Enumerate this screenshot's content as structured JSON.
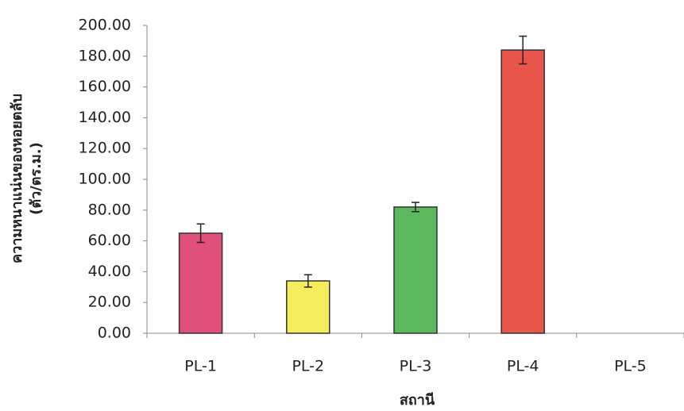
{
  "chart_data": {
    "type": "bar",
    "y_label": [
      "ความหนาแน่นของหอยตลับ",
      "(ตัว/ตร.ม.)"
    ],
    "x_label": "สถานี",
    "categories": [
      "PL-1",
      "PL-2",
      "PL-3",
      "PL-4",
      "PL-5"
    ],
    "values": [
      65,
      34,
      82,
      184,
      0
    ],
    "errors": [
      6,
      4,
      3,
      9,
      0
    ],
    "colors": [
      "#e0507a",
      "#f4ee5c",
      "#5cb85c",
      "#e8554a",
      "#999999"
    ],
    "ylim": [
      0,
      200
    ],
    "yticks": [
      {
        "value": 0,
        "label": "0.00"
      },
      {
        "value": 20,
        "label": "20.00"
      },
      {
        "value": 40,
        "label": "40.00"
      },
      {
        "value": 60,
        "label": "60.00"
      },
      {
        "value": 80,
        "label": "80.00"
      },
      {
        "value": 100,
        "label": "100.00"
      },
      {
        "value": 120,
        "label": "120.00"
      },
      {
        "value": 140,
        "label": "140.00"
      },
      {
        "value": 160,
        "label": "160.00"
      },
      {
        "value": 180,
        "label": "180.00"
      },
      {
        "value": 200,
        "label": "200.00"
      }
    ]
  }
}
